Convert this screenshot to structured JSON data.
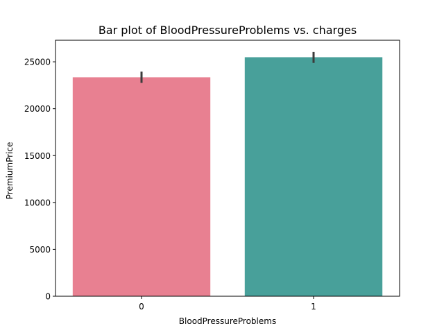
{
  "chart_data": {
    "type": "bar",
    "title": "Bar plot of BloodPressureProblems vs. charges",
    "xlabel": "BloodPressureProblems",
    "ylabel": "PremiumPrice",
    "categories": [
      "0",
      "1"
    ],
    "values": [
      23350,
      25490
    ],
    "error_low": [
      22750,
      24880
    ],
    "error_high": [
      23950,
      26050
    ],
    "colors": [
      "#e88091",
      "#48a09a"
    ],
    "error_color": "#3b3b3b",
    "ylim": [
      0,
      27300
    ],
    "yticks": [
      0,
      5000,
      10000,
      15000,
      20000,
      25000
    ],
    "ytick_labels": [
      "0",
      "5000",
      "10000",
      "15000",
      "20000",
      "25000"
    ],
    "grid": false,
    "legend": "none"
  }
}
